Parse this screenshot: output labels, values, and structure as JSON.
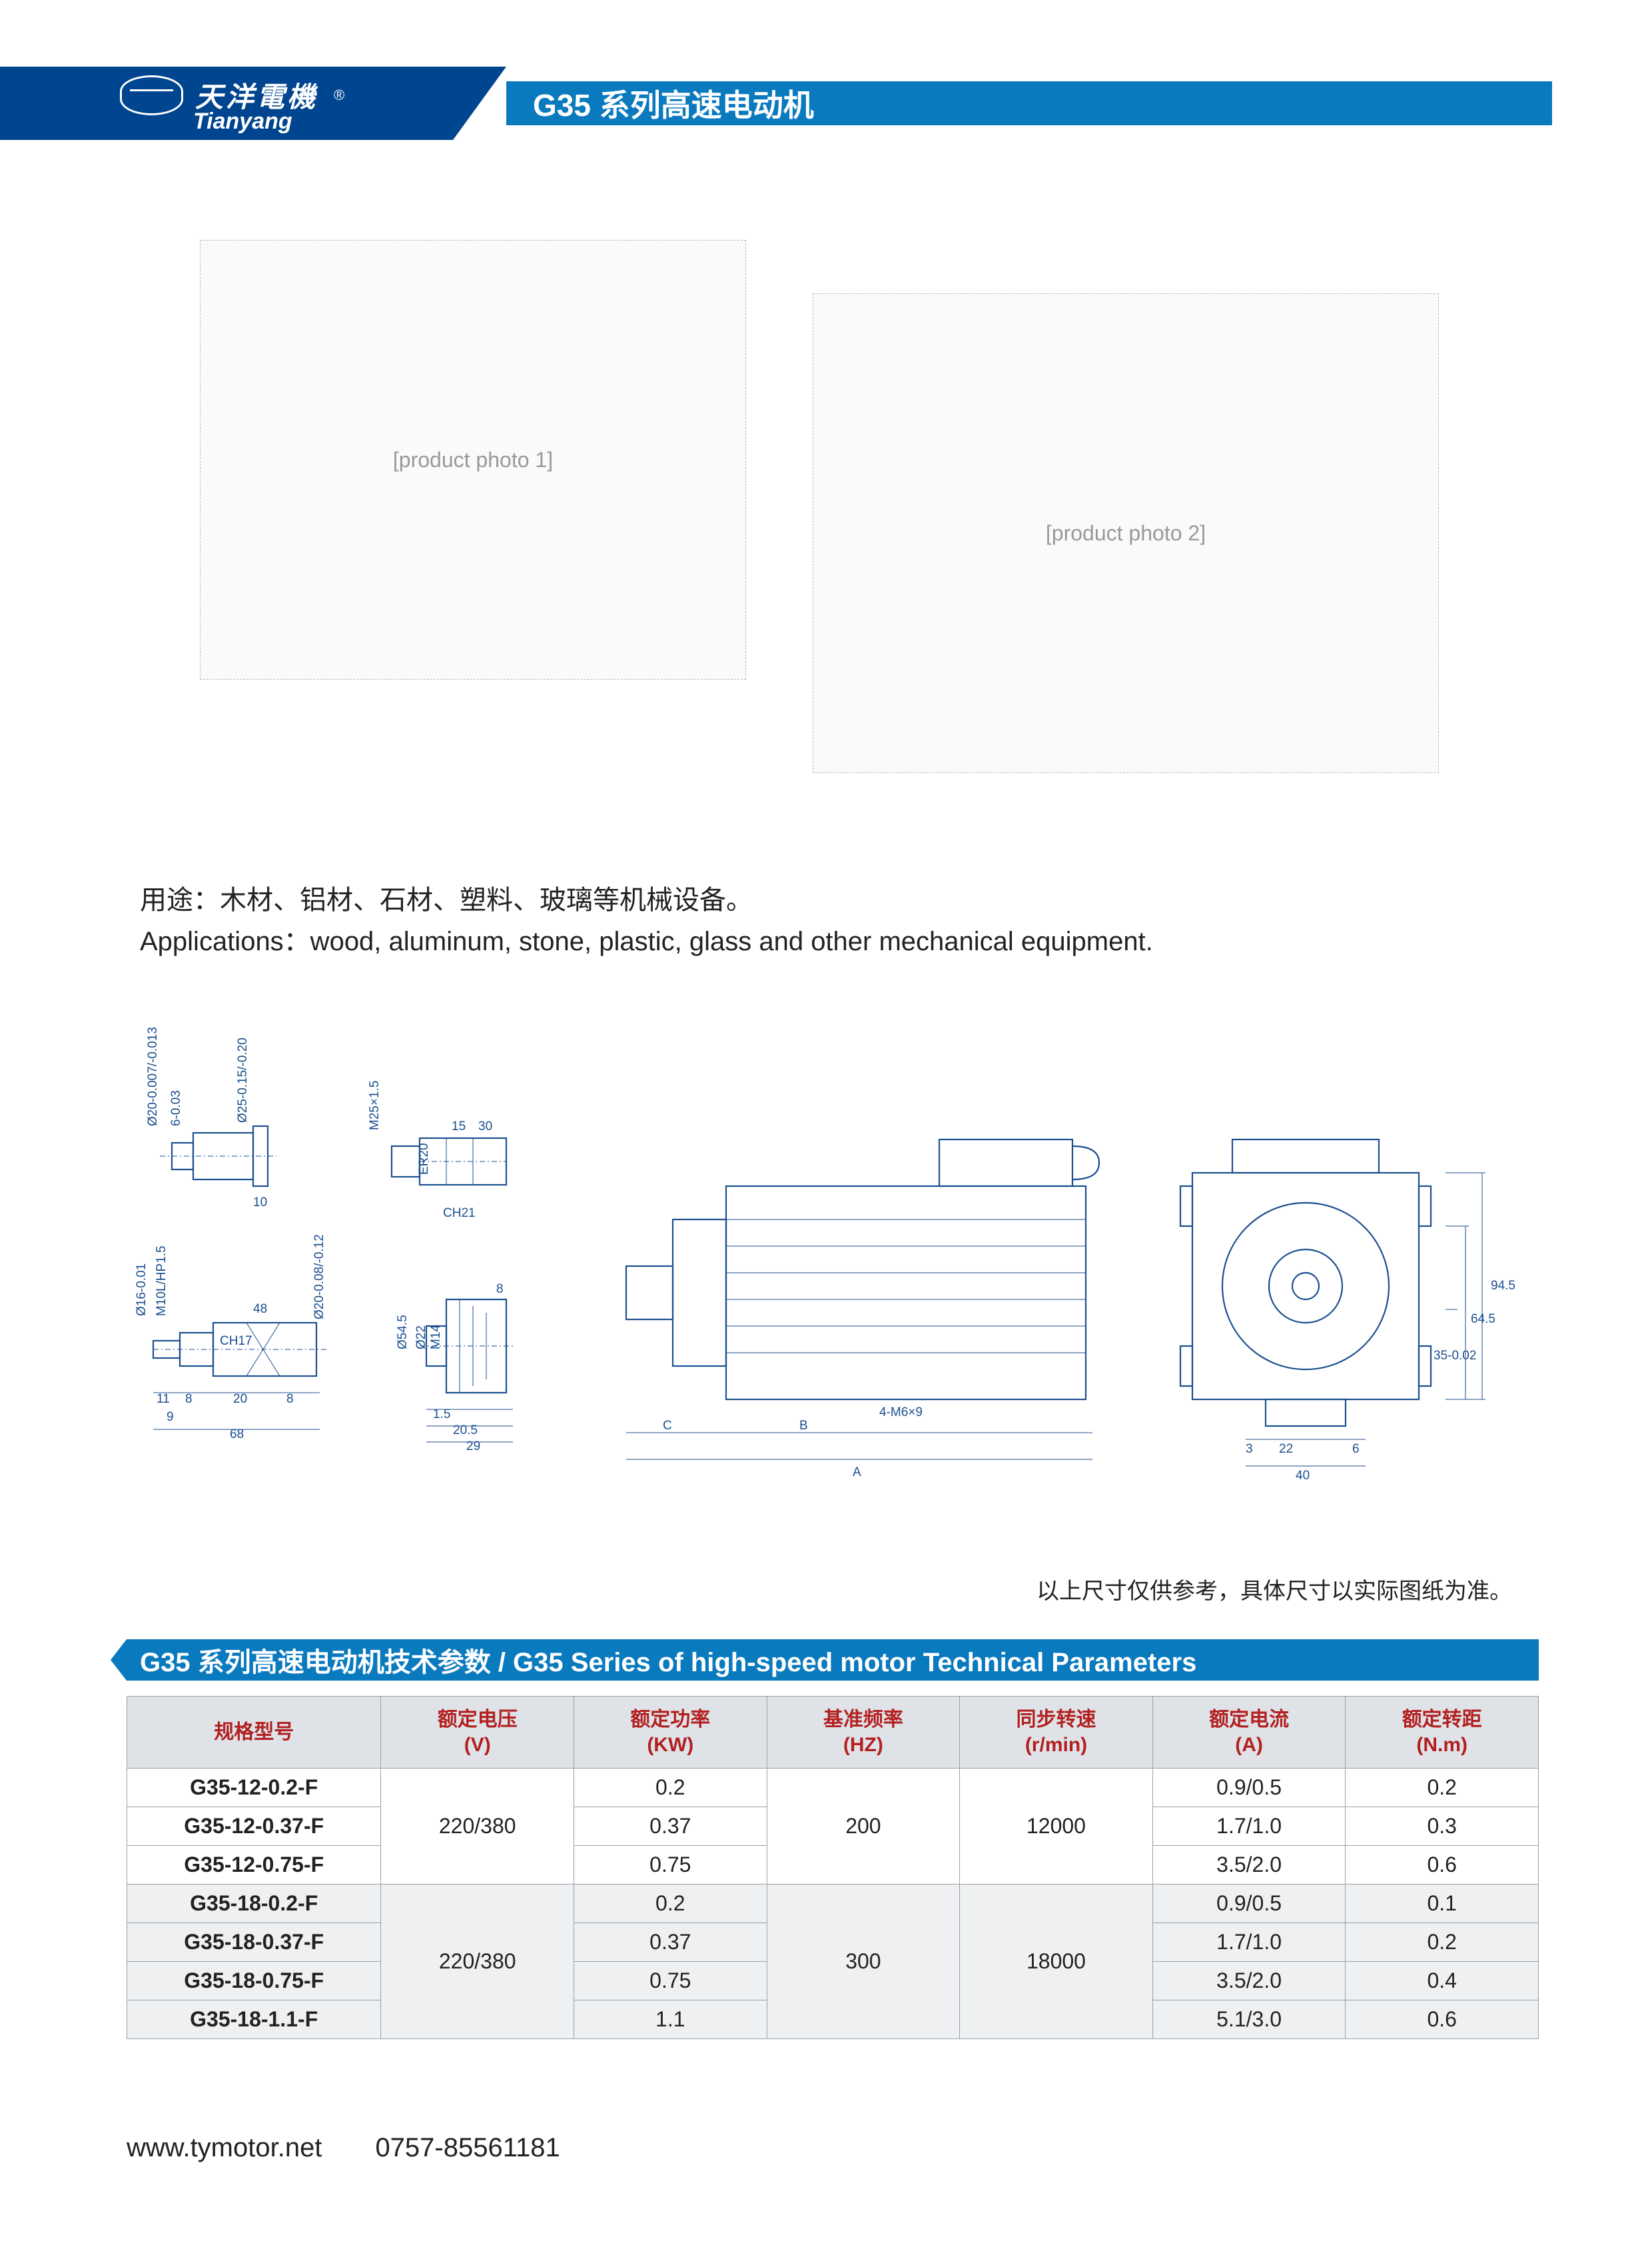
{
  "brand": {
    "cn": "天洋電機",
    "en": "Tianyang",
    "reg": "®"
  },
  "header_title": "G35 系列高速电动机",
  "photo_label_1": "[product photo 1]",
  "photo_label_2": "[product photo 2]",
  "applications": {
    "cn": "用途：木材、铝材、石材、塑料、玻璃等机械设备。",
    "en": "Applications：wood, aluminum, stone, plastic, glass and other mechanical equipment."
  },
  "dim_note": "以上尺寸仅供参考，具体尺寸以实际图纸为准。",
  "section_title": "G35 系列高速电动机技术参数 / G35 Series of high-speed motor Technical Parameters",
  "drawing_dims": {
    "small": {
      "d1": "Ø20-0.007/-0.013",
      "d2": "6-0.03",
      "d3": "Ø25-0.15/-0.20",
      "d4": "10",
      "e1": "M25×1.5",
      "e2": "30",
      "e3": "15",
      "e4": "ER20",
      "e5": "CH21",
      "f1": "Ø16-0.01",
      "f2": "M10L/HP1.5",
      "f3": "48",
      "f4": "CH17",
      "f5": "Ø20-0.08/-0.12",
      "f6": "11",
      "f7": "8",
      "f8": "20",
      "f9": "8",
      "f10": "9",
      "f11": "68",
      "g1": "8",
      "g2": "Ø54.5",
      "g3": "Ø22",
      "g4": "M14",
      "g5": "1.5",
      "g6": "20.5",
      "g7": "29"
    },
    "large": {
      "A": "A",
      "B": "B",
      "C": "C",
      "holes": "4-M6×9",
      "r1": "94.5",
      "r2": "64.5",
      "r3": "35-0.02",
      "r4": "3",
      "r5": "22",
      "r6": "6",
      "r7": "40"
    }
  },
  "table": {
    "headers": [
      {
        "cn": "规格型号",
        "en": ""
      },
      {
        "cn": "额定电压",
        "en": "(V)"
      },
      {
        "cn": "额定功率",
        "en": "(KW)"
      },
      {
        "cn": "基准频率",
        "en": "(HZ)"
      },
      {
        "cn": "同步转速",
        "en": "(r/min)"
      },
      {
        "cn": "额定电流",
        "en": "(A)"
      },
      {
        "cn": "额定转距",
        "en": "(N.m)"
      }
    ],
    "groups": [
      {
        "voltage": "220/380",
        "hz": "200",
        "rpm": "12000",
        "rows": [
          {
            "model": "G35-12-0.2-F",
            "kw": "0.2",
            "amp": "0.9/0.5",
            "nm": "0.2"
          },
          {
            "model": "G35-12-0.37-F",
            "kw": "0.37",
            "amp": "1.7/1.0",
            "nm": "0.3"
          },
          {
            "model": "G35-12-0.75-F",
            "kw": "0.75",
            "amp": "3.5/2.0",
            "nm": "0.6"
          }
        ]
      },
      {
        "voltage": "220/380",
        "hz": "300",
        "rpm": "18000",
        "rows": [
          {
            "model": "G35-18-0.2-F",
            "kw": "0.2",
            "amp": "0.9/0.5",
            "nm": "0.1"
          },
          {
            "model": "G35-18-0.37-F",
            "kw": "0.37",
            "amp": "1.7/1.0",
            "nm": "0.2"
          },
          {
            "model": "G35-18-0.75-F",
            "kw": "0.75",
            "amp": "3.5/2.0",
            "nm": "0.4"
          },
          {
            "model": "G35-18-1.1-F",
            "kw": "1.1",
            "amp": "5.1/3.0",
            "nm": "0.6"
          }
        ]
      }
    ]
  },
  "footer": {
    "url": "www.tymotor.net",
    "tel": "0757-85561181"
  },
  "colors": {
    "header_dark": "#00458f",
    "header_light": "#0a7abf",
    "drawing_stroke": "#1b4f8f",
    "th_bg": "#dfe3e8",
    "th_color": "#b32020",
    "row_alt_bg": "#eef0f2",
    "border": "#9aa0a6"
  }
}
